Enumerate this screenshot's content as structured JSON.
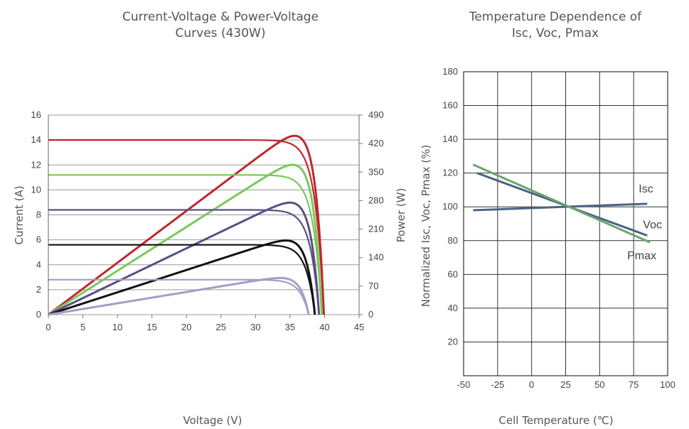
{
  "chart_data": [
    {
      "type": "line",
      "title_lines": [
        "Current-Voltage & Power-Voltage",
        "Curves (430W)"
      ],
      "xlabel": "Voltage (V)",
      "ylabel": "Current (A)",
      "y2label": "Power (W)",
      "xlim": [
        0,
        45
      ],
      "ylim": [
        0,
        16
      ],
      "y2lim": [
        0,
        490
      ],
      "x_ticks": [
        "0",
        "5",
        "10",
        "15",
        "20",
        "25",
        "30",
        "35",
        "40",
        "45"
      ],
      "y_ticks": [
        "0",
        "2",
        "4",
        "6",
        "8",
        "10",
        "12",
        "14",
        "16"
      ],
      "y2_ticks": [
        "0",
        "70",
        "140",
        "210",
        "280",
        "350",
        "420",
        "490"
      ],
      "grid": "horizontal",
      "series": [
        {
          "color": "#c0262d",
          "isc": 14,
          "voc": 39.9,
          "pmax": 439,
          "vmp": 33.5
        },
        {
          "color": "#79c95b",
          "isc": 11.2,
          "voc": 39.6,
          "pmax": 368,
          "vmp": 33.3
        },
        {
          "color": "#5c4e86",
          "isc": 8.4,
          "voc": 39.2,
          "pmax": 275,
          "vmp": 33.0
        },
        {
          "color": "#111111",
          "isc": 5.6,
          "voc": 38.6,
          "pmax": 182,
          "vmp": 32.7
        },
        {
          "color": "#a89bc4",
          "isc": 2.8,
          "voc": 37.7,
          "pmax": 90,
          "vmp": 32.3
        }
      ]
    },
    {
      "type": "line",
      "title_lines": [
        "Temperature Dependence of",
        "Isc, Voc, Pmax"
      ],
      "xlabel": "Cell Temperature (℃)",
      "ylabel": "Normalized Isc, Voc, Pmax (%)",
      "xlim": [
        -50,
        100
      ],
      "ylim": [
        0,
        180
      ],
      "x_ticks": [
        "-50",
        "-25",
        "0",
        "25",
        "50",
        "75",
        "100"
      ],
      "y_ticks": [
        "20",
        "40",
        "60",
        "80",
        "100",
        "120",
        "140",
        "160",
        "180"
      ],
      "grid": "both",
      "series": [
        {
          "name": "Isc",
          "color": "#4a6484",
          "x": [
            -43,
            85
          ],
          "y": [
            98,
            101.8
          ]
        },
        {
          "name": "Voc",
          "color": "#4a6484",
          "x": [
            -40,
            85
          ],
          "y": [
            120,
            83
          ]
        },
        {
          "name": "Pmax",
          "color": "#6ea36b",
          "x": [
            -43,
            87
          ],
          "y": [
            125,
            79
          ]
        }
      ]
    }
  ]
}
